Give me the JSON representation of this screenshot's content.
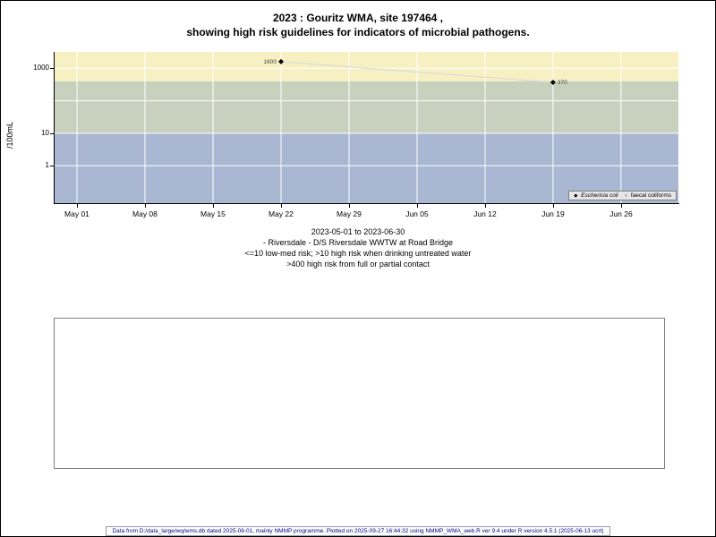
{
  "chart_data": {
    "type": "scatter",
    "title": "2023 : Gouritz WMA, site 197464 , showing high risk guidelines for indicators of microbial pathogens.",
    "title_line1": "2023 : Gouritz WMA, site 197464 ,",
    "title_line2": "showing high risk guidelines for indicators of microbial pathogens.",
    "ylabel": "/100mL",
    "y_scale": "log10",
    "ylim": [
      0.07,
      3200
    ],
    "x_domain": [
      -2.3,
      61.9
    ],
    "grid": "white-on-bands",
    "legend_position": "bottom-right-inside",
    "x_ticks": [
      {
        "day": 0,
        "label": "May 01"
      },
      {
        "day": 7,
        "label": "May 08"
      },
      {
        "day": 14,
        "label": "May 15"
      },
      {
        "day": 21,
        "label": "May 22"
      },
      {
        "day": 28,
        "label": "May 29"
      },
      {
        "day": 35,
        "label": "Jun 05"
      },
      {
        "day": 42,
        "label": "Jun 12"
      },
      {
        "day": 49,
        "label": "Jun 19"
      },
      {
        "day": 56,
        "label": "Jun 26"
      }
    ],
    "y_ticks": [
      {
        "value": 1,
        "label": "1"
      },
      {
        "value": 10,
        "label": "10"
      },
      {
        "value": 100,
        "label": ""
      },
      {
        "value": 1000,
        "label": "1000"
      }
    ],
    "bands": [
      {
        "from": 400,
        "to": 3200,
        "color": "#F6F0C2",
        "meaning": ">400 high risk from full or partial contact"
      },
      {
        "from": 10,
        "to": 400,
        "color": "#C8D1BD",
        "meaning": ">10 high risk when drinking untreated water"
      },
      {
        "from": 0.07,
        "to": 10,
        "color": "#A9B7D2",
        "meaning": "<=10 low-med risk"
      }
    ],
    "series": [
      {
        "name": "Eschericia coli",
        "marker": "filled-diamond",
        "color": "#000000",
        "line_color": "#D8D8D8",
        "points": [
          {
            "day": 21,
            "date": "2023-05-22",
            "value": 1600,
            "label": "1600",
            "label_side": "left"
          },
          {
            "day": 49,
            "date": "2023-06-19",
            "value": 370,
            "label": "370",
            "label_side": "right"
          }
        ]
      },
      {
        "name": "faecal coliforms",
        "marker": "open-circle",
        "color": "#000000",
        "line_color": "#D8D8D8",
        "points": []
      }
    ],
    "legend": [
      {
        "marker": "filled-diamond",
        "label": "Eschericia coli"
      },
      {
        "marker": "open-circle",
        "label": "faecal coliforms"
      }
    ]
  },
  "caption": {
    "lines": [
      "2023-05-01 to 2023-06-30",
      "- Riversdale - D/S Riversdale WWTW at Road Bridge",
      "<=10 low-med risk; >10 high risk when drinking untreated water",
      ">400 high risk from full or partial contact"
    ]
  },
  "footer": {
    "text": "Data from D:/data_large/wq/wms.db dated 2025-08-01, mainly NMMP programme. Plotted on 2025-09-27 16:44:32 using NMMP_WMA_web.R ver 9.4 under R version 4.5.1 (2025-06-13 ucrt)"
  }
}
